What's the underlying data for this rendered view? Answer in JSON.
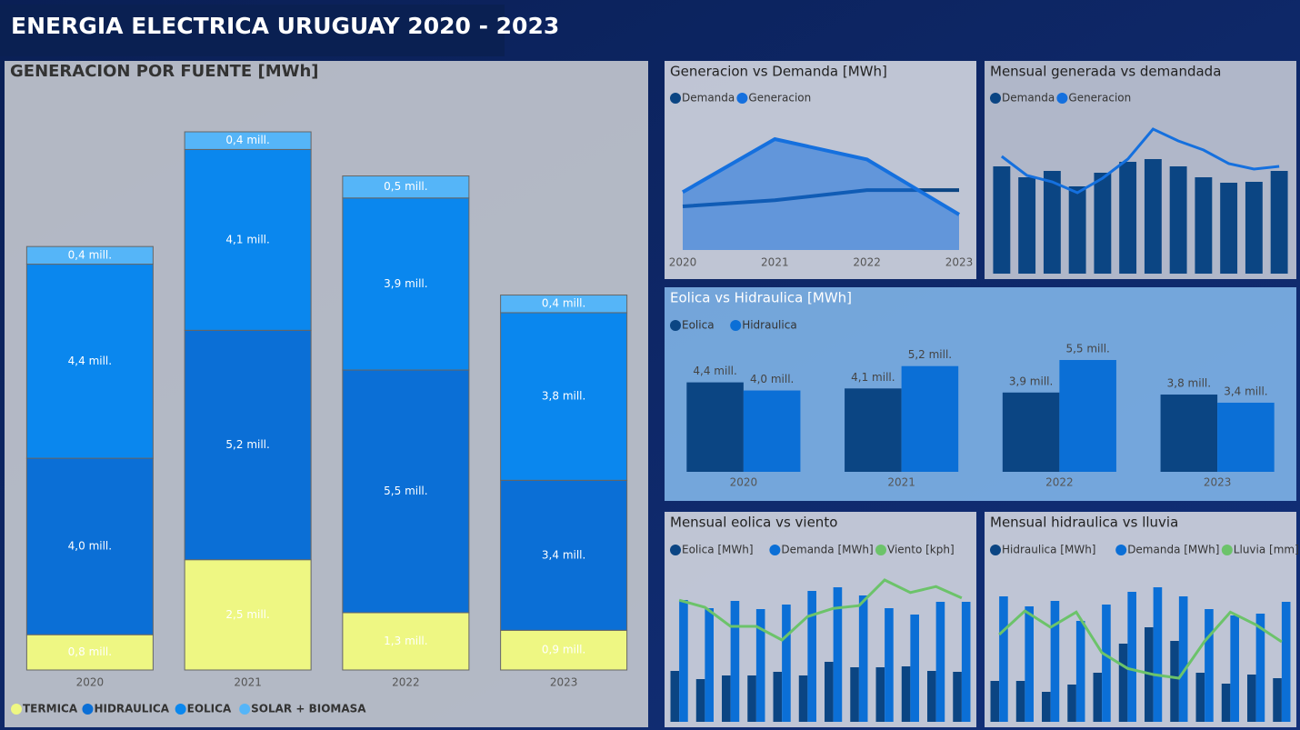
{
  "title": "ENERGIA ELECTRICA URUGUAY 2020 - 2023",
  "chart_data": [
    {
      "type": "bar",
      "stacked": true,
      "title": "GENERACION POR FUENTE [MWh]",
      "legend": "bottom-left",
      "categories": [
        "2020",
        "2021",
        "2022",
        "2023"
      ],
      "series": [
        {
          "name": "TERMICA",
          "color": "#eef783",
          "values": [
            800000,
            2500000,
            1300000,
            900000
          ],
          "value_labels": [
            "0,8 mill.",
            "2,5 mill.",
            "1,3 mill.",
            "0,9 mill."
          ]
        },
        {
          "name": "HIDRAULICA",
          "color": "#0b6fd6",
          "values": [
            4000000,
            5200000,
            5500000,
            3400000
          ],
          "value_labels": [
            "4,0 mill.",
            "5,2 mill.",
            "5,5 mill.",
            "3,4 mill."
          ]
        },
        {
          "name": "EOLICA",
          "color": "#0a87ee",
          "values": [
            4400000,
            4100000,
            3900000,
            3800000
          ],
          "value_labels": [
            "4,4 mill.",
            "4,1 mill.",
            "3,9 mill.",
            "3,8 mill."
          ]
        },
        {
          "name": "SOLAR + BIOMASA",
          "color": "#55b5f8",
          "values": [
            400000,
            400000,
            500000,
            400000
          ],
          "value_labels": [
            "0,4 mill.",
            "0,4 mill.",
            "0,5 mill.",
            "0,4 mill."
          ]
        }
      ]
    },
    {
      "type": "line",
      "title": "Generacion vs Demanda [MWh]",
      "legend": "top-left",
      "categories": [
        "2020",
        "2021",
        "2022",
        "2023"
      ],
      "series": [
        {
          "name": "Demanda",
          "color": "#0b4583",
          "values": [
            8900000,
            9200000,
            9700000,
            9700000
          ]
        },
        {
          "name": "Generacion",
          "color": "#1570de",
          "area": true,
          "values": [
            9600000,
            12200000,
            11200000,
            8500000
          ]
        }
      ]
    },
    {
      "type": "combo",
      "title": "Mensual generada vs demandada",
      "legend": "top-left",
      "series": [
        {
          "name": "Demanda",
          "color": "#0b4583",
          "kind": "bar",
          "values": [
            826000,
            742000,
            791000,
            672000,
            777000,
            861000,
            882000,
            826000,
            742000,
            700000,
            707000,
            791000
          ]
        },
        {
          "name": "Generacion",
          "color": "#1570de",
          "kind": "line",
          "values": [
            903000,
            756000,
            707000,
            623000,
            735000,
            882000,
            1113000,
            1022000,
            952000,
            847000,
            805000,
            826000
          ]
        }
      ]
    },
    {
      "type": "bar",
      "title": "Eolica vs Hidraulica [MWh]",
      "legend": "top-left",
      "categories": [
        "2020",
        "2021",
        "2022",
        "2023"
      ],
      "series": [
        {
          "name": "Eolica",
          "color": "#0b4583",
          "values": [
            4400000,
            4100000,
            3900000,
            3800000
          ],
          "value_labels": [
            "4,4 mill.",
            "4,1 mill.",
            "3,9 mill.",
            "3,8 mill."
          ]
        },
        {
          "name": "Hidraulica",
          "color": "#0b6fd6",
          "values": [
            4000000,
            5200000,
            5500000,
            3400000
          ],
          "value_labels": [
            "4,0 mill.",
            "5,2 mill.",
            "5,5 mill.",
            "3,4 mill."
          ]
        }
      ]
    },
    {
      "type": "combo",
      "title": "Mensual eolica vs viento",
      "legend": "top-left",
      "series": [
        {
          "name": "Eolica [MWh]",
          "color": "#0b4583",
          "kind": "bar",
          "values": [
            336000,
            282000,
            306000,
            306000,
            330000,
            306000,
            396000,
            360000,
            360000,
            366000,
            336000,
            330000
          ]
        },
        {
          "name": "Demanda [MWh]",
          "color": "#0b6fd6",
          "kind": "bar",
          "values": [
            804000,
            750000,
            798000,
            744000,
            774000,
            864000,
            888000,
            834000,
            750000,
            708000,
            792000,
            792000
          ]
        },
        {
          "name": "Viento [kph]",
          "color": "#6cc36a",
          "kind": "line",
          "axis": "y2",
          "values": [
            23.3,
            22.0,
            18.5,
            18.5,
            16.0,
            20.3,
            21.8,
            22.3,
            27.0,
            24.7,
            25.8,
            23.7
          ]
        }
      ]
    },
    {
      "type": "combo",
      "title": "Mensual hidraulica vs lluvia",
      "legend": "top-left",
      "series": [
        {
          "name": "Hidraulica [MWh]",
          "color": "#0b4583",
          "kind": "bar",
          "values": [
            270000,
            270000,
            198000,
            246000,
            324000,
            516000,
            624000,
            534000,
            324000,
            252000,
            312000,
            288000
          ]
        },
        {
          "name": "Demanda [MWh]",
          "color": "#0b6fd6",
          "kind": "bar",
          "values": [
            828000,
            762000,
            798000,
            666000,
            774000,
            858000,
            888000,
            828000,
            744000,
            702000,
            714000,
            792000
          ]
        },
        {
          "name": "Lluvia [mm]",
          "color": "#6cc36a",
          "kind": "line",
          "axis": "y2",
          "values": [
            153,
            192,
            165,
            190,
            123,
            97,
            87,
            81,
            142,
            190,
            169,
            141
          ]
        }
      ]
    }
  ]
}
